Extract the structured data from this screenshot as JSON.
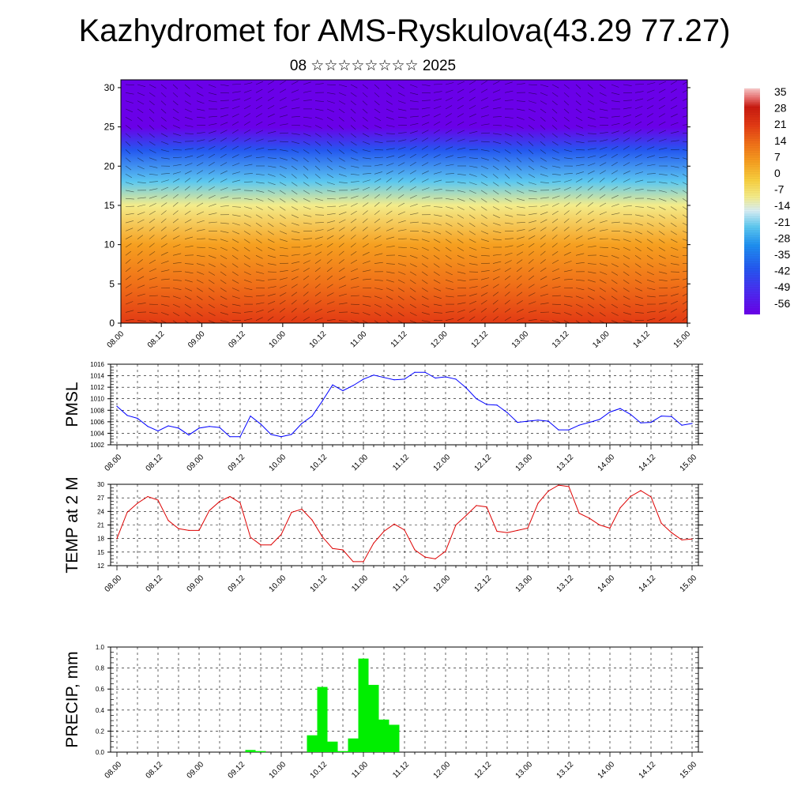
{
  "header": {
    "title": "Kazhydromet for AMS-Ryskulova(43.29 77.27)",
    "subtitle": "08 ☆☆☆☆☆☆☆☆ 2025"
  },
  "time_ticks": [
    "08.00",
    "08.12",
    "09.00",
    "09.12",
    "10.00",
    "10.12",
    "11.00",
    "11.12",
    "12.00",
    "12.12",
    "13.00",
    "13.12",
    "14.00",
    "14.12",
    "15.00"
  ],
  "chart_data": [
    {
      "type": "heatmap",
      "description_kind": "time-height cross section with wind vectors",
      "x_ticks": [
        "08.00",
        "08.12",
        "09.00",
        "09.12",
        "10.00",
        "10.12",
        "11.00",
        "11.12",
        "12.00",
        "12.12",
        "13.00",
        "13.12",
        "14.00",
        "14.12",
        "15.00"
      ],
      "y_ticks": [
        0,
        5,
        10,
        15,
        20,
        25,
        30
      ],
      "ylim": [
        0,
        31
      ],
      "colorbar_labels": [
        "35",
        "28",
        "21",
        "14",
        "7",
        "0",
        "-7",
        "-14",
        "-21",
        "-28",
        "-35",
        "-42",
        "-49",
        "-56"
      ],
      "colorbar_range": [
        -60,
        38
      ],
      "temperature_profile": [
        {
          "level": 0,
          "value": 30
        },
        {
          "level": 5,
          "value": 22
        },
        {
          "level": 10,
          "value": 14
        },
        {
          "level": 15,
          "value": -8
        },
        {
          "level": 18,
          "value": -18
        },
        {
          "level": 22,
          "value": -32
        },
        {
          "level": 25,
          "value": -52
        },
        {
          "level": 30,
          "value": -58
        }
      ]
    },
    {
      "type": "line",
      "ylabel": "PMSL",
      "ylim": [
        1002,
        1016
      ],
      "y_ticks": [
        1002,
        1004,
        1006,
        1008,
        1010,
        1012,
        1014,
        1016
      ],
      "x_ticks": [
        "08.00",
        "08.12",
        "09.00",
        "09.12",
        "10.00",
        "10.12",
        "11.00",
        "11.12",
        "12.00",
        "12.12",
        "13.00",
        "13.12",
        "14.00",
        "14.12",
        "15.00"
      ],
      "x_hours_step": 3,
      "color": "#0000ff",
      "values": [
        1008.7,
        1007.1,
        1006.6,
        1005.2,
        1004.4,
        1005.3,
        1004.9,
        1003.7,
        1004.9,
        1005.2,
        1005.0,
        1003.4,
        1003.4,
        1007.0,
        1005.6,
        1003.8,
        1003.4,
        1003.8,
        1005.7,
        1007.0,
        1009.6,
        1012.4,
        1011.4,
        1012.3,
        1013.4,
        1014.1,
        1013.7,
        1013.3,
        1013.4,
        1014.6,
        1014.6,
        1013.6,
        1013.8,
        1013.4,
        1011.9,
        1010.0,
        1009.0,
        1008.9,
        1007.6,
        1005.9,
        1006.1,
        1006.3,
        1006.1,
        1004.6,
        1004.6,
        1005.4,
        1005.9,
        1006.4,
        1007.7,
        1008.3,
        1007.3,
        1005.8,
        1005.9,
        1007.0,
        1006.9,
        1005.4,
        1005.7
      ]
    },
    {
      "type": "line",
      "ylabel": "TEMP at 2 M",
      "ylim": [
        12,
        30
      ],
      "y_ticks": [
        12,
        15,
        18,
        21,
        24,
        27,
        30
      ],
      "x_ticks": [
        "08.00",
        "08.12",
        "09.00",
        "09.12",
        "10.00",
        "10.12",
        "11.00",
        "11.12",
        "12.00",
        "12.12",
        "13.00",
        "13.12",
        "14.00",
        "14.12",
        "15.00"
      ],
      "x_hours_step": 3,
      "color": "#dd0000",
      "values": [
        18.0,
        23.8,
        25.8,
        27.3,
        26.5,
        22.0,
        20.2,
        19.8,
        19.8,
        24.2,
        26.2,
        27.3,
        25.9,
        18.3,
        16.6,
        16.6,
        18.9,
        23.8,
        24.5,
        22.1,
        18.4,
        15.8,
        15.5,
        12.9,
        12.9,
        17.0,
        19.6,
        21.2,
        19.9,
        15.5,
        13.9,
        13.5,
        15.2,
        21.0,
        23.1,
        25.3,
        25.0,
        19.6,
        19.3,
        19.8,
        20.3,
        25.8,
        28.5,
        29.8,
        29.5,
        23.6,
        22.5,
        21.0,
        20.3,
        24.8,
        27.3,
        28.6,
        27.2,
        21.4,
        19.3,
        17.7,
        17.9
      ]
    },
    {
      "type": "bar",
      "ylabel": "PRECIP, mm",
      "ylim": [
        0,
        1.0
      ],
      "y_ticks": [
        0.0,
        0.2,
        0.4,
        0.6,
        0.8,
        1.0
      ],
      "x_ticks": [
        "08.00",
        "08.12",
        "09.00",
        "09.12",
        "10.00",
        "10.12",
        "11.00",
        "11.12",
        "12.00",
        "12.12",
        "13.00",
        "13.12",
        "14.00",
        "14.12",
        "15.00"
      ],
      "x_hours_step": 3,
      "color": "#00ee00",
      "values": [
        0,
        0,
        0,
        0,
        0,
        0,
        0,
        0,
        0,
        0,
        0,
        0,
        0,
        0.02,
        0.01,
        0,
        0,
        0,
        0,
        0.16,
        0.62,
        0.1,
        0.01,
        0.13,
        0.89,
        0.64,
        0.31,
        0.26,
        0,
        0,
        0,
        0,
        0,
        0,
        0,
        0,
        0,
        0,
        0,
        0,
        0,
        0,
        0,
        0,
        0,
        0,
        0,
        0,
        0,
        0,
        0,
        0,
        0,
        0,
        0,
        0,
        0
      ]
    }
  ]
}
